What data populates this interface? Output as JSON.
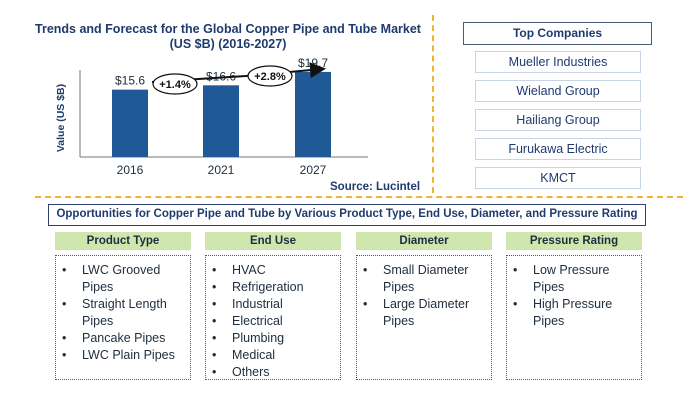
{
  "chart_data": {
    "type": "bar",
    "title_line1": "Trends and Forecast for the Global Copper Pipe and Tube Market",
    "title_line2": "(US $B) (2016-2027)",
    "ylabel": "Value (US $B)",
    "xlabel": "",
    "categories": [
      "2016",
      "2021",
      "2027"
    ],
    "values": [
      15.6,
      16.6,
      19.7
    ],
    "value_labels": [
      "$15.6",
      "$16.6",
      "$19.7"
    ],
    "ylim": [
      0,
      22
    ],
    "bar_color": "#1f5a96",
    "growth_annotations": [
      "+1.4%",
      "+2.8%"
    ],
    "source": "Source: Lucintel"
  },
  "top_companies": {
    "header": "Top Companies",
    "items": [
      "Mueller Industries",
      "Wieland Group",
      "Hailiang Group",
      "Furukawa Electric",
      "KMCT"
    ]
  },
  "opportunities": {
    "title": "Opportunities for Copper Pipe and Tube by Various Product Type, End Use, Diameter, and Pressure Rating",
    "bullet": "•",
    "categories": [
      {
        "header": "Product Type",
        "items": [
          "LWC Grooved Pipes",
          "Straight Length Pipes",
          "Pancake Pipes",
          "LWC Plain Pipes"
        ]
      },
      {
        "header": "End Use",
        "items": [
          "HVAC",
          "Refrigeration",
          "Industrial",
          "Electrical",
          "Plumbing",
          "Medical",
          "Others"
        ]
      },
      {
        "header": "Diameter",
        "items": [
          "Small Diameter Pipes",
          "Large Diameter Pipes"
        ]
      },
      {
        "header": "Pressure Rating",
        "items": [
          "Low Pressure Pipes",
          "High Pressure Pipes"
        ]
      }
    ]
  },
  "colors": {
    "accent_dashed": "#f2b233",
    "header_green": "#cfe6ae",
    "navy": "#1f3b6e"
  }
}
